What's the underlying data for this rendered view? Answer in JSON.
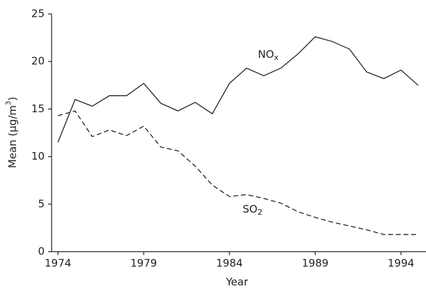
{
  "chart_data": {
    "type": "line",
    "x_label": "Year",
    "y_label": "Mean (μg/m",
    "y_label_sup": "3",
    "y_label_end": ")",
    "x": [
      1974,
      1975,
      1976,
      1977,
      1978,
      1979,
      1980,
      1981,
      1982,
      1983,
      1984,
      1985,
      1986,
      1987,
      1988,
      1989,
      1990,
      1991,
      1992,
      1993,
      1994,
      1995
    ],
    "series": [
      {
        "name": "NO",
        "subscript": "x",
        "color": "#222222",
        "dash": false,
        "values": [
          11.5,
          16,
          15.3,
          16.4,
          16.4,
          17.7,
          15.6,
          14.8,
          15.7,
          14.5,
          17.7,
          19.3,
          18.5,
          19.3,
          20.8,
          22.6,
          22.1,
          21.3,
          18.9,
          18.2,
          19.1,
          17.5
        ]
      },
      {
        "name": "SO",
        "subscript": "2",
        "color": "#222222",
        "dash": true,
        "values": [
          14.3,
          14.8,
          12.1,
          12.8,
          12.2,
          13.2,
          11,
          10.6,
          9,
          7,
          5.8,
          6,
          5.6,
          5.1,
          4.2,
          3.6,
          3.1,
          2.7,
          2.3,
          1.8,
          1.8,
          1.8
        ]
      }
    ],
    "xlim": [
      1973.63,
      1995.46
    ],
    "xticks": [
      1974,
      1979,
      1984,
      1989,
      1994
    ],
    "ylim": [
      0,
      25
    ],
    "yticks": [
      0,
      5,
      10,
      15,
      20,
      25
    ]
  }
}
